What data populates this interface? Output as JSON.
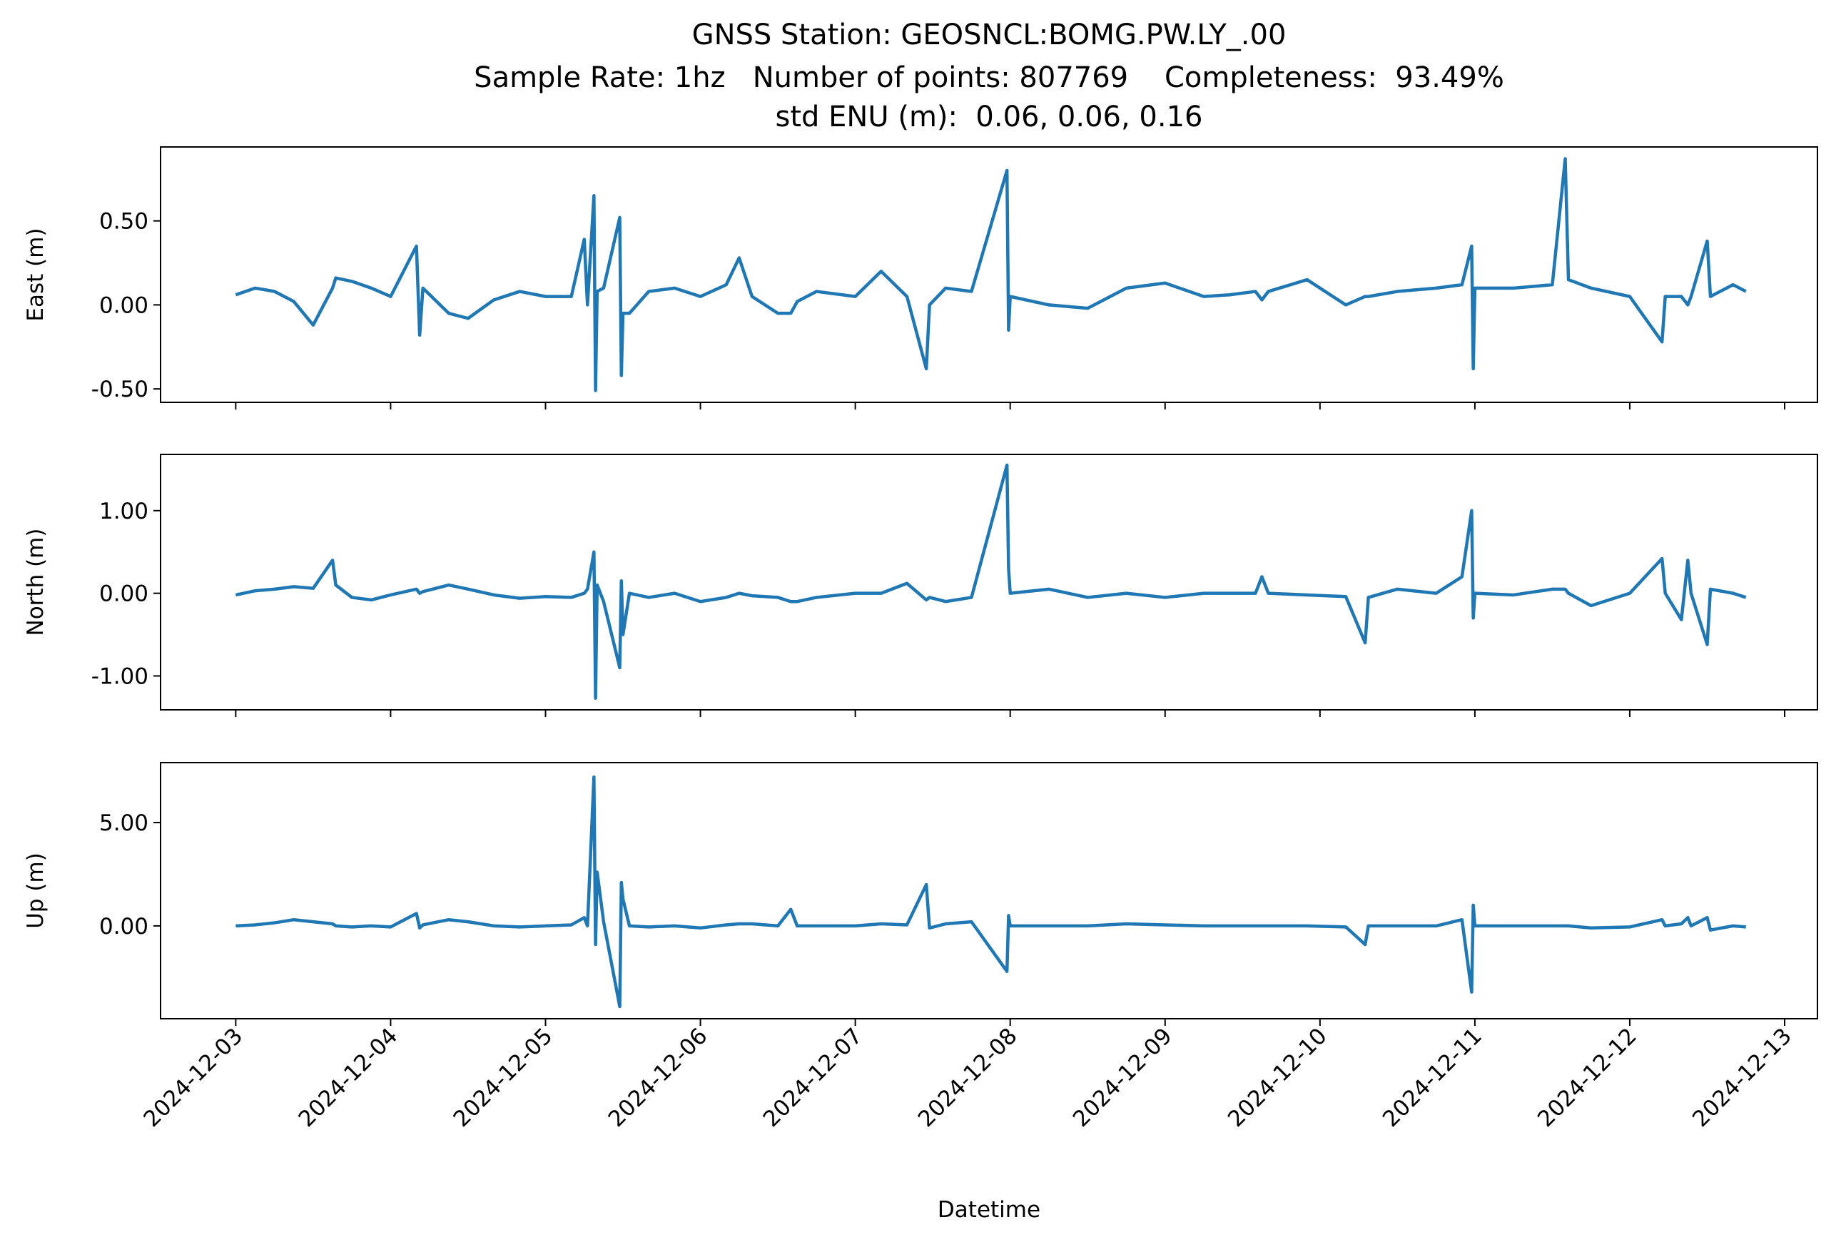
{
  "chart_data": {
    "type": "line",
    "title": [
      "GNSS Station: GEOSNCL:BOMG.PW.LY_.00",
      "Sample Rate: 1hz   Number of points: 807769    Completeness:  93.49%",
      "std ENU (m):  0.06, 0.06, 0.16"
    ],
    "xlabel": "Datetime",
    "xlim": [
      "2024-12-02 12:21",
      "2024-12-13 05:05"
    ],
    "xticks": [
      "2024-12-03",
      "2024-12-04",
      "2024-12-05",
      "2024-12-06",
      "2024-12-07",
      "2024-12-08",
      "2024-12-09",
      "2024-12-10",
      "2024-12-11",
      "2024-12-12",
      "2024-12-13"
    ],
    "x": [
      "2024-12-03 00:00",
      "2024-12-03 03:00",
      "2024-12-03 06:00",
      "2024-12-03 09:00",
      "2024-12-03 12:00",
      "2024-12-03 15:00",
      "2024-12-03 15:30",
      "2024-12-03 18:00",
      "2024-12-03 21:00",
      "2024-12-04 00:00",
      "2024-12-04 04:00",
      "2024-12-04 04:30",
      "2024-12-04 05:00",
      "2024-12-04 09:00",
      "2024-12-04 12:00",
      "2024-12-04 16:00",
      "2024-12-04 20:00",
      "2024-12-05 00:00",
      "2024-12-05 04:00",
      "2024-12-05 06:00",
      "2024-12-05 06:30",
      "2024-12-05 07:30",
      "2024-12-05 07:45",
      "2024-12-05 08:00",
      "2024-12-05 09:00",
      "2024-12-05 11:30",
      "2024-12-05 11:45",
      "2024-12-05 12:00",
      "2024-12-05 13:00",
      "2024-12-05 16:00",
      "2024-12-05 20:00",
      "2024-12-06 00:00",
      "2024-12-06 04:00",
      "2024-12-06 06:00",
      "2024-12-06 08:00",
      "2024-12-06 12:00",
      "2024-12-06 14:00",
      "2024-12-06 15:00",
      "2024-12-06 18:00",
      "2024-12-07 00:00",
      "2024-12-07 04:00",
      "2024-12-07 08:00",
      "2024-12-07 11:00",
      "2024-12-07 11:30",
      "2024-12-07 14:00",
      "2024-12-07 18:00",
      "2024-12-07 23:30",
      "2024-12-07 23:45",
      "2024-12-08 00:00",
      "2024-12-08 06:00",
      "2024-12-08 12:00",
      "2024-12-08 18:00",
      "2024-12-09 00:00",
      "2024-12-09 06:00",
      "2024-12-09 10:00",
      "2024-12-09 14:00",
      "2024-12-09 15:00",
      "2024-12-09 16:00",
      "2024-12-09 22:00",
      "2024-12-10 04:00",
      "2024-12-10 07:00",
      "2024-12-10 07:30",
      "2024-12-10 12:00",
      "2024-12-10 18:00",
      "2024-12-10 22:00",
      "2024-12-10 23:30",
      "2024-12-10 23:45",
      "2024-12-11 00:00",
      "2024-12-11 06:00",
      "2024-12-11 12:00",
      "2024-12-11 14:00",
      "2024-12-11 14:30",
      "2024-12-11 18:00",
      "2024-12-12 00:00",
      "2024-12-12 05:00",
      "2024-12-12 05:30",
      "2024-12-12 08:00",
      "2024-12-12 09:00",
      "2024-12-12 09:30",
      "2024-12-12 12:00",
      "2024-12-12 12:30",
      "2024-12-12 16:00",
      "2024-12-12 18:00"
    ],
    "panels": [
      {
        "ylabel": "East (m)",
        "color": "#1f77b4",
        "ylim": [
          -0.58,
          0.94
        ],
        "yticks": [
          {
            "value": -0.5,
            "label": "-0.50"
          },
          {
            "value": 0,
            "label": "0.00"
          },
          {
            "value": 0.5,
            "label": "0.50"
          }
        ],
        "values": [
          0.06,
          0.1,
          0.08,
          0.02,
          -0.12,
          0.1,
          0.16,
          0.14,
          0.1,
          0.05,
          0.35,
          -0.18,
          0.1,
          -0.05,
          -0.08,
          0.03,
          0.08,
          0.05,
          0.05,
          0.39,
          0.0,
          0.65,
          -0.51,
          0.08,
          0.1,
          0.52,
          -0.42,
          -0.05,
          -0.05,
          0.08,
          0.1,
          0.05,
          0.12,
          0.28,
          0.05,
          -0.05,
          -0.05,
          0.02,
          0.08,
          0.05,
          0.2,
          0.05,
          -0.38,
          0.0,
          0.1,
          0.08,
          0.8,
          -0.15,
          0.05,
          0.0,
          -0.02,
          0.1,
          0.13,
          0.05,
          0.06,
          0.08,
          0.03,
          0.08,
          0.15,
          0.0,
          0.05,
          0.05,
          0.08,
          0.1,
          0.12,
          0.35,
          -0.38,
          0.1,
          0.1,
          0.12,
          0.87,
          0.15,
          0.1,
          0.05,
          -0.22,
          0.05,
          0.05,
          0.0,
          0.05,
          0.38,
          0.05,
          0.12,
          0.08
        ]
      },
      {
        "ylabel": "North (m)",
        "color": "#1f77b4",
        "ylim": [
          -1.41,
          1.68
        ],
        "yticks": [
          {
            "value": -1,
            "label": "-1.00"
          },
          {
            "value": 0,
            "label": "0.00"
          },
          {
            "value": 1,
            "label": "1.00"
          }
        ],
        "values": [
          -0.02,
          0.03,
          0.05,
          0.08,
          0.06,
          0.4,
          0.1,
          -0.05,
          -0.08,
          -0.02,
          0.05,
          0.0,
          0.02,
          0.1,
          0.05,
          -0.02,
          -0.06,
          -0.04,
          -0.05,
          0.0,
          0.05,
          0.5,
          -1.27,
          0.1,
          -0.1,
          -0.9,
          0.15,
          -0.5,
          0.0,
          -0.05,
          0.0,
          -0.1,
          -0.05,
          0.0,
          -0.03,
          -0.05,
          -0.1,
          -0.1,
          -0.05,
          0.0,
          0.0,
          0.12,
          -0.08,
          -0.05,
          -0.1,
          -0.05,
          1.55,
          0.3,
          0.0,
          0.05,
          -0.05,
          0.0,
          -0.05,
          0.0,
          0.0,
          0.0,
          0.2,
          0.0,
          -0.02,
          -0.04,
          -0.6,
          -0.05,
          0.05,
          0.0,
          0.2,
          1.0,
          -0.3,
          0.0,
          -0.02,
          0.05,
          0.05,
          0.0,
          -0.15,
          0.0,
          0.42,
          0.0,
          -0.32,
          0.4,
          0.0,
          -0.62,
          0.05,
          0.0,
          -0.05
        ]
      },
      {
        "ylabel": "Up (m)",
        "color": "#1f77b4",
        "ylim": [
          -4.49,
          7.9
        ],
        "yticks": [
          {
            "value": 0,
            "label": "0.00"
          },
          {
            "value": 5,
            "label": "5.00"
          }
        ],
        "values": [
          0.0,
          0.05,
          0.15,
          0.3,
          0.2,
          0.1,
          0.0,
          -0.05,
          0.0,
          -0.05,
          0.6,
          -0.1,
          0.05,
          0.3,
          0.2,
          0.0,
          -0.05,
          0.0,
          0.05,
          0.4,
          0.0,
          7.2,
          -0.9,
          2.6,
          0.2,
          -3.9,
          2.1,
          1.3,
          0.0,
          -0.05,
          0.0,
          -0.1,
          0.05,
          0.1,
          0.1,
          0.0,
          0.8,
          0.0,
          0.0,
          0.0,
          0.1,
          0.05,
          2.0,
          -0.1,
          0.1,
          0.2,
          -2.2,
          0.5,
          0.0,
          0.0,
          0.0,
          0.1,
          0.05,
          0.0,
          0.0,
          0.0,
          0.0,
          0.0,
          0.0,
          -0.05,
          -0.9,
          0.0,
          0.0,
          0.0,
          0.3,
          -3.2,
          1.0,
          0.0,
          0.0,
          0.0,
          0.0,
          0.0,
          -0.1,
          -0.05,
          0.3,
          0.0,
          0.1,
          0.4,
          0.0,
          0.4,
          -0.2,
          0.0,
          -0.05
        ]
      }
    ]
  }
}
